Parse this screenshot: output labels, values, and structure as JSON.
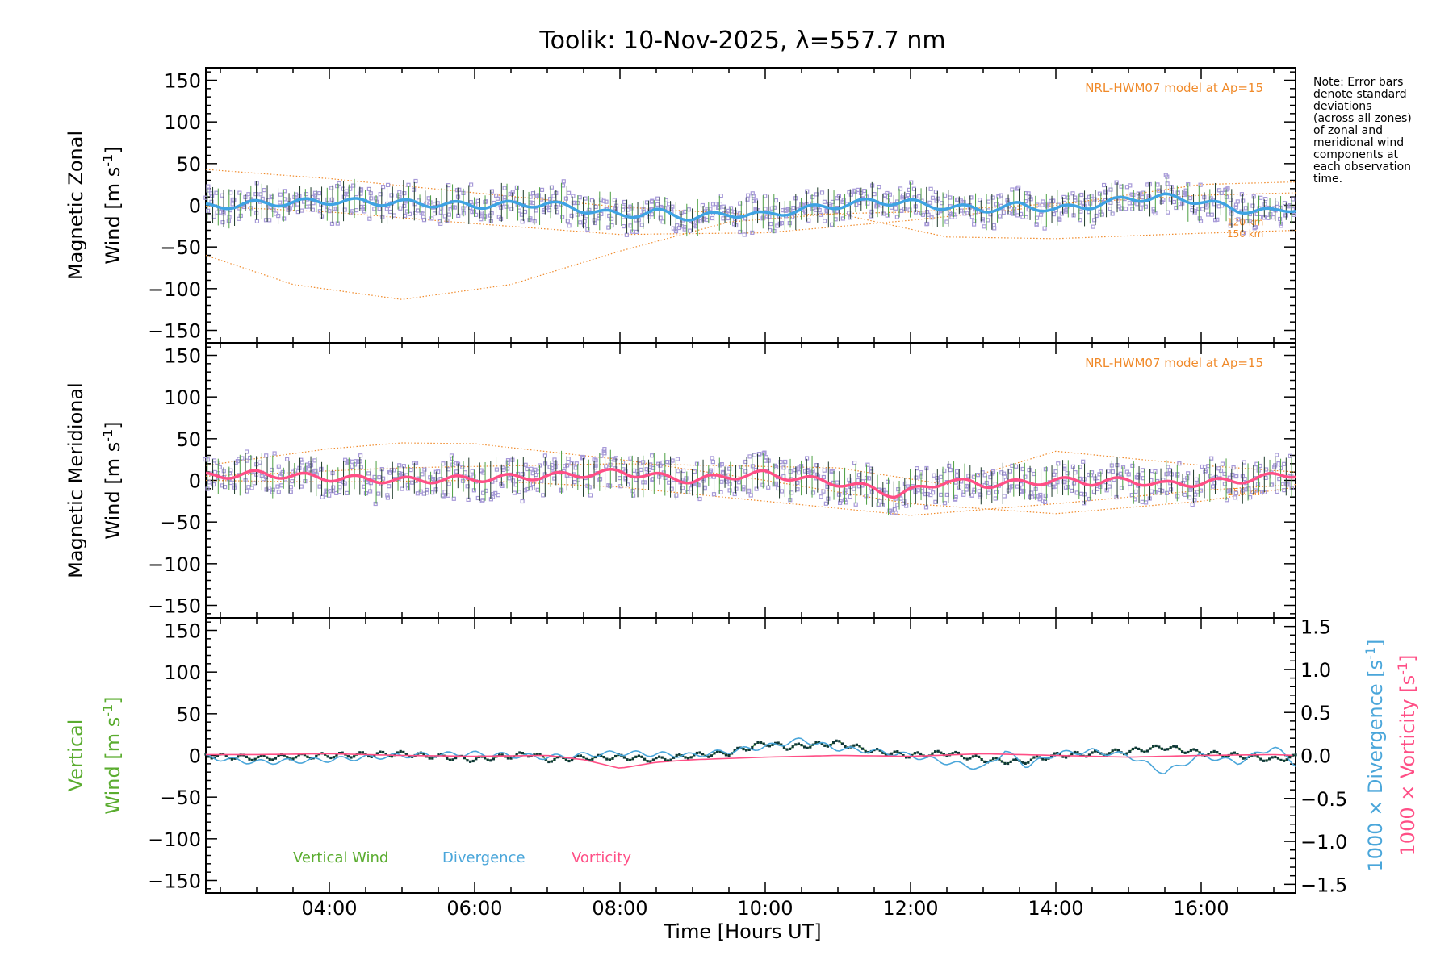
{
  "figure": {
    "title": "Toolik: 10-Nov-2025, λ=557.7 nm",
    "xlabel": "Time [Hours UT]",
    "note_lines": [
      "Note: Error bars",
      "denote standard",
      "deviations",
      "(across all zones)",
      "of zonal and",
      "meridional wind",
      "components at",
      "each observation",
      "time."
    ]
  },
  "colors": {
    "zonal": "#3fa3e3",
    "meridional": "#ff4f86",
    "model": "#f08a2a",
    "scatter": "#a79ad8",
    "vertical": "#5aac2f",
    "divergence": "#4aa6da",
    "vorticity": "#ff4f86",
    "errorbar_dark": "#1c3a28",
    "errorbar_green": "#4da043"
  },
  "chart_data": [
    {
      "type": "line",
      "panel": "zonal",
      "ylabel_line1": "Magnetic Zonal",
      "ylabel_line2": "Wind [m s",
      "ylabel_sup": "-1",
      "ylabel_end": "]",
      "xlim": [
        2.3,
        17.3
      ],
      "ylim": [
        -165,
        165
      ],
      "yticks": [
        150,
        100,
        50,
        0,
        -50,
        -100,
        -150
      ],
      "ytick_labels": [
        "150",
        "100",
        "50",
        "0",
        "−50",
        "−100",
        "−150"
      ],
      "model_label": "NRL-HWM07 model at Ap=15",
      "model_alt_labels": [
        "120 km",
        "150 km"
      ],
      "model_curves": [
        {
          "name": "model-upper",
          "x": [
            2.3,
            4,
            6,
            8,
            10,
            12,
            14,
            16,
            17.3
          ],
          "y": [
            43,
            32,
            15,
            -2,
            -12,
            -8,
            2,
            12,
            15
          ]
        },
        {
          "name": "model-120km",
          "x": [
            2.3,
            4,
            6,
            8,
            10,
            12,
            14,
            16,
            17.3
          ],
          "y": [
            -1,
            -8,
            -22,
            -35,
            -33,
            -18,
            0,
            25,
            28
          ]
        },
        {
          "name": "model-150km",
          "x": [
            2.3,
            3.5,
            5,
            6.5,
            8,
            9.5,
            11,
            12.5,
            14,
            15.5,
            17.3
          ],
          "y": [
            -60,
            -95,
            -113,
            -95,
            -55,
            -20,
            -10,
            -38,
            -40,
            -35,
            -30
          ]
        }
      ],
      "series": [
        {
          "name": "Zonal wind",
          "x": [
            2.3,
            3,
            4,
            5,
            6,
            7,
            7.5,
            8,
            8.5,
            9,
            9.5,
            10,
            10.5,
            11,
            11.5,
            12,
            12.5,
            13,
            13.5,
            14,
            14.5,
            15,
            15.5,
            16,
            16.5,
            17,
            17.3
          ],
          "y": [
            -2,
            2,
            5,
            3,
            0,
            2,
            -5,
            -12,
            -8,
            -15,
            -10,
            -12,
            -5,
            0,
            5,
            3,
            -2,
            -5,
            0,
            -5,
            0,
            8,
            10,
            5,
            -5,
            -8,
            -3
          ]
        }
      ]
    },
    {
      "type": "line",
      "panel": "meridional",
      "ylabel_line1": "Magnetic Meridional",
      "ylabel_line2": "Wind [m s",
      "ylabel_sup": "-1",
      "ylabel_end": "]",
      "xlim": [
        2.3,
        17.3
      ],
      "ylim": [
        -165,
        165
      ],
      "yticks": [
        150,
        100,
        50,
        0,
        -50,
        -100,
        -150
      ],
      "ytick_labels": [
        "150",
        "100",
        "50",
        "0",
        "−50",
        "−100",
        "−150"
      ],
      "model_label": "NRL-HWM07 model at Ap=15",
      "model_alt_labels": [
        "150 km"
      ],
      "model_curves": [
        {
          "name": "model-upper",
          "x": [
            2.3,
            4,
            5,
            6,
            8,
            10,
            12,
            14,
            16,
            17.3
          ],
          "y": [
            18,
            38,
            45,
            44,
            25,
            0,
            -28,
            -40,
            -25,
            -8
          ]
        },
        {
          "name": "model-lower",
          "x": [
            2.3,
            5,
            8,
            11,
            12.5,
            14,
            16,
            17.3
          ],
          "y": [
            5,
            15,
            20,
            15,
            -5,
            35,
            18,
            10
          ]
        },
        {
          "name": "model-150km",
          "x": [
            2.3,
            4,
            6,
            8,
            10,
            12,
            14,
            16,
            17.3
          ],
          "y": [
            0,
            -2,
            0,
            -8,
            -25,
            -42,
            -28,
            -12,
            -5
          ]
        }
      ],
      "series": [
        {
          "name": "Meridional wind",
          "x": [
            2.3,
            3,
            4,
            5,
            6,
            7,
            8,
            8.5,
            9,
            9.5,
            10,
            10.5,
            11,
            11.5,
            11.8,
            12.2,
            12.5,
            13,
            13.5,
            14,
            14.5,
            15,
            15.5,
            16,
            16.5,
            17,
            17.3
          ],
          "y": [
            5,
            8,
            3,
            0,
            2,
            5,
            10,
            5,
            0,
            5,
            8,
            2,
            -3,
            -10,
            -18,
            -8,
            0,
            -5,
            -3,
            0,
            -2,
            0,
            -5,
            -3,
            0,
            5,
            8
          ]
        }
      ]
    },
    {
      "type": "line",
      "panel": "vertical",
      "ylabel_line1": "Vertical",
      "ylabel_line2": "Wind [m s",
      "ylabel_sup": "-1",
      "ylabel_end": "]",
      "right_ylabel_div": "1000 × Divergence [s",
      "right_ylabel_vor": "1000 × Vorticity [s",
      "right_ylabel_sup": "-1",
      "right_ylabel_end": "]",
      "xlim": [
        2.3,
        17.3
      ],
      "ylim": [
        -165,
        165
      ],
      "yticks": [
        150,
        100,
        50,
        0,
        -50,
        -100,
        -150
      ],
      "ytick_labels": [
        "150",
        "100",
        "50",
        "0",
        "−50",
        "−100",
        "−150"
      ],
      "ylim_right": [
        -1.6,
        1.6
      ],
      "yticks_right": [
        1.5,
        1.0,
        0.5,
        0.0,
        -0.5,
        -1.0,
        -1.5
      ],
      "ytick_labels_right": [
        "1.5",
        "1.0",
        "0.5",
        "0.0",
        "−0.5",
        "−1.0",
        "−1.5"
      ],
      "legend": [
        "Vertical Wind",
        "Divergence",
        "Vorticity"
      ],
      "series": [
        {
          "name": "Vertical Wind",
          "axis": "left",
          "x": [
            2.3,
            3,
            4,
            5,
            6,
            6.8,
            7,
            7.5,
            8,
            8.5,
            9,
            9.5,
            10,
            10.3,
            10.6,
            11,
            11.5,
            12,
            12.5,
            13,
            13.5,
            14,
            14.5,
            15,
            15.5,
            16,
            16.5,
            17,
            17.3
          ],
          "y": [
            0,
            -3,
            0,
            2,
            -5,
            2,
            -5,
            -3,
            -2,
            -5,
            0,
            3,
            15,
            10,
            12,
            15,
            5,
            0,
            3,
            -5,
            -8,
            0,
            2,
            5,
            10,
            3,
            0,
            -5,
            -2
          ]
        },
        {
          "name": "Divergence",
          "axis": "right",
          "x": [
            2.3,
            3,
            4,
            5,
            6,
            7,
            8,
            9,
            9.5,
            10,
            10.5,
            11,
            11.5,
            12,
            12.5,
            13,
            13.3,
            13.6,
            14,
            14.5,
            15,
            15.5,
            16,
            16.5,
            17,
            17.3
          ],
          "y": [
            -0.02,
            -0.08,
            -0.05,
            0.0,
            0.02,
            -0.02,
            0.03,
            0.0,
            0.05,
            0.1,
            0.18,
            0.08,
            0.05,
            0.0,
            -0.08,
            -0.15,
            0.05,
            -0.12,
            0.02,
            0.05,
            0.0,
            -0.2,
            0.0,
            -0.08,
            0.1,
            -0.1
          ]
        },
        {
          "name": "Vorticity",
          "axis": "right",
          "x": [
            2.3,
            3,
            4,
            5,
            6,
            7,
            7.5,
            8,
            8.5,
            9,
            10,
            11,
            12,
            13,
            14,
            15,
            16,
            17,
            17.3
          ],
          "y": [
            0.01,
            0.01,
            0.02,
            0.0,
            -0.01,
            0.0,
            -0.05,
            -0.15,
            -0.08,
            -0.05,
            -0.02,
            0.0,
            -0.01,
            0.02,
            0.0,
            -0.02,
            0.0,
            0.01,
            0.0
          ]
        }
      ]
    }
  ],
  "xaxis": {
    "ticks": [
      4,
      6,
      8,
      10,
      12,
      14,
      16
    ],
    "labels": [
      "04:00",
      "06:00",
      "08:00",
      "10:00",
      "12:00",
      "14:00",
      "16:00"
    ]
  }
}
